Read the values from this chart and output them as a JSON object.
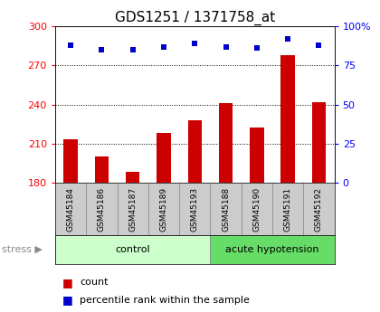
{
  "title": "GDS1251 / 1371758_at",
  "samples": [
    "GSM45184",
    "GSM45186",
    "GSM45187",
    "GSM45189",
    "GSM45193",
    "GSM45188",
    "GSM45190",
    "GSM45191",
    "GSM45192"
  ],
  "counts": [
    213,
    200,
    188,
    218,
    228,
    241,
    222,
    278,
    242
  ],
  "percentiles": [
    88,
    85,
    85,
    87,
    89,
    87,
    86,
    92,
    88
  ],
  "n_control": 5,
  "n_acute": 4,
  "ylim_left": [
    180,
    300
  ],
  "ylim_right": [
    0,
    100
  ],
  "yticks_left": [
    180,
    210,
    240,
    270,
    300
  ],
  "yticks_right": [
    0,
    25,
    50,
    75,
    100
  ],
  "bar_color": "#cc0000",
  "dot_color": "#0000cc",
  "control_color": "#ccffcc",
  "acute_color": "#66dd66",
  "sample_bg_color": "#cccccc",
  "legend_count": "count",
  "legend_pct": "percentile rank within the sample",
  "title_fontsize": 11,
  "tick_fontsize": 8,
  "sample_fontsize": 6.5,
  "group_fontsize": 8,
  "legend_fontsize": 8
}
